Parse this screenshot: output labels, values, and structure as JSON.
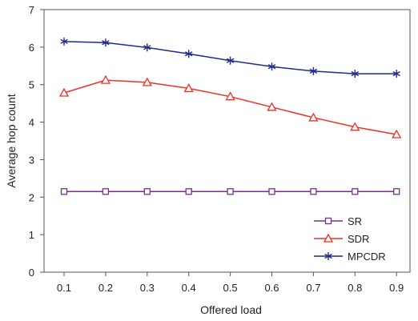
{
  "chart_data": {
    "type": "line",
    "title": "",
    "xlabel": "Offered load",
    "ylabel": "Average hop count",
    "x": [
      "0.1",
      "0.2",
      "0.3",
      "0.4",
      "0.5",
      "0.6",
      "0.7",
      "0.8",
      "0.9"
    ],
    "ylim": [
      0,
      7
    ],
    "yticks": [
      "0",
      "1",
      "2",
      "3",
      "4",
      "5",
      "6",
      "7"
    ],
    "grid": false,
    "legend_position": "bottom-right",
    "series": [
      {
        "name": "SR",
        "marker": "square",
        "color": "#7a2e8c",
        "values": [
          2.15,
          2.15,
          2.15,
          2.15,
          2.15,
          2.15,
          2.15,
          2.15,
          2.15
        ]
      },
      {
        "name": "SDR",
        "marker": "triangle",
        "color": "#ee3124",
        "values": [
          4.78,
          5.12,
          5.06,
          4.9,
          4.68,
          4.4,
          4.12,
          3.87,
          3.67
        ]
      },
      {
        "name": "MPCDR",
        "marker": "star",
        "color": "#1f2b8f",
        "values": [
          6.15,
          6.12,
          5.99,
          5.82,
          5.64,
          5.48,
          5.36,
          5.29,
          5.29
        ]
      }
    ]
  }
}
